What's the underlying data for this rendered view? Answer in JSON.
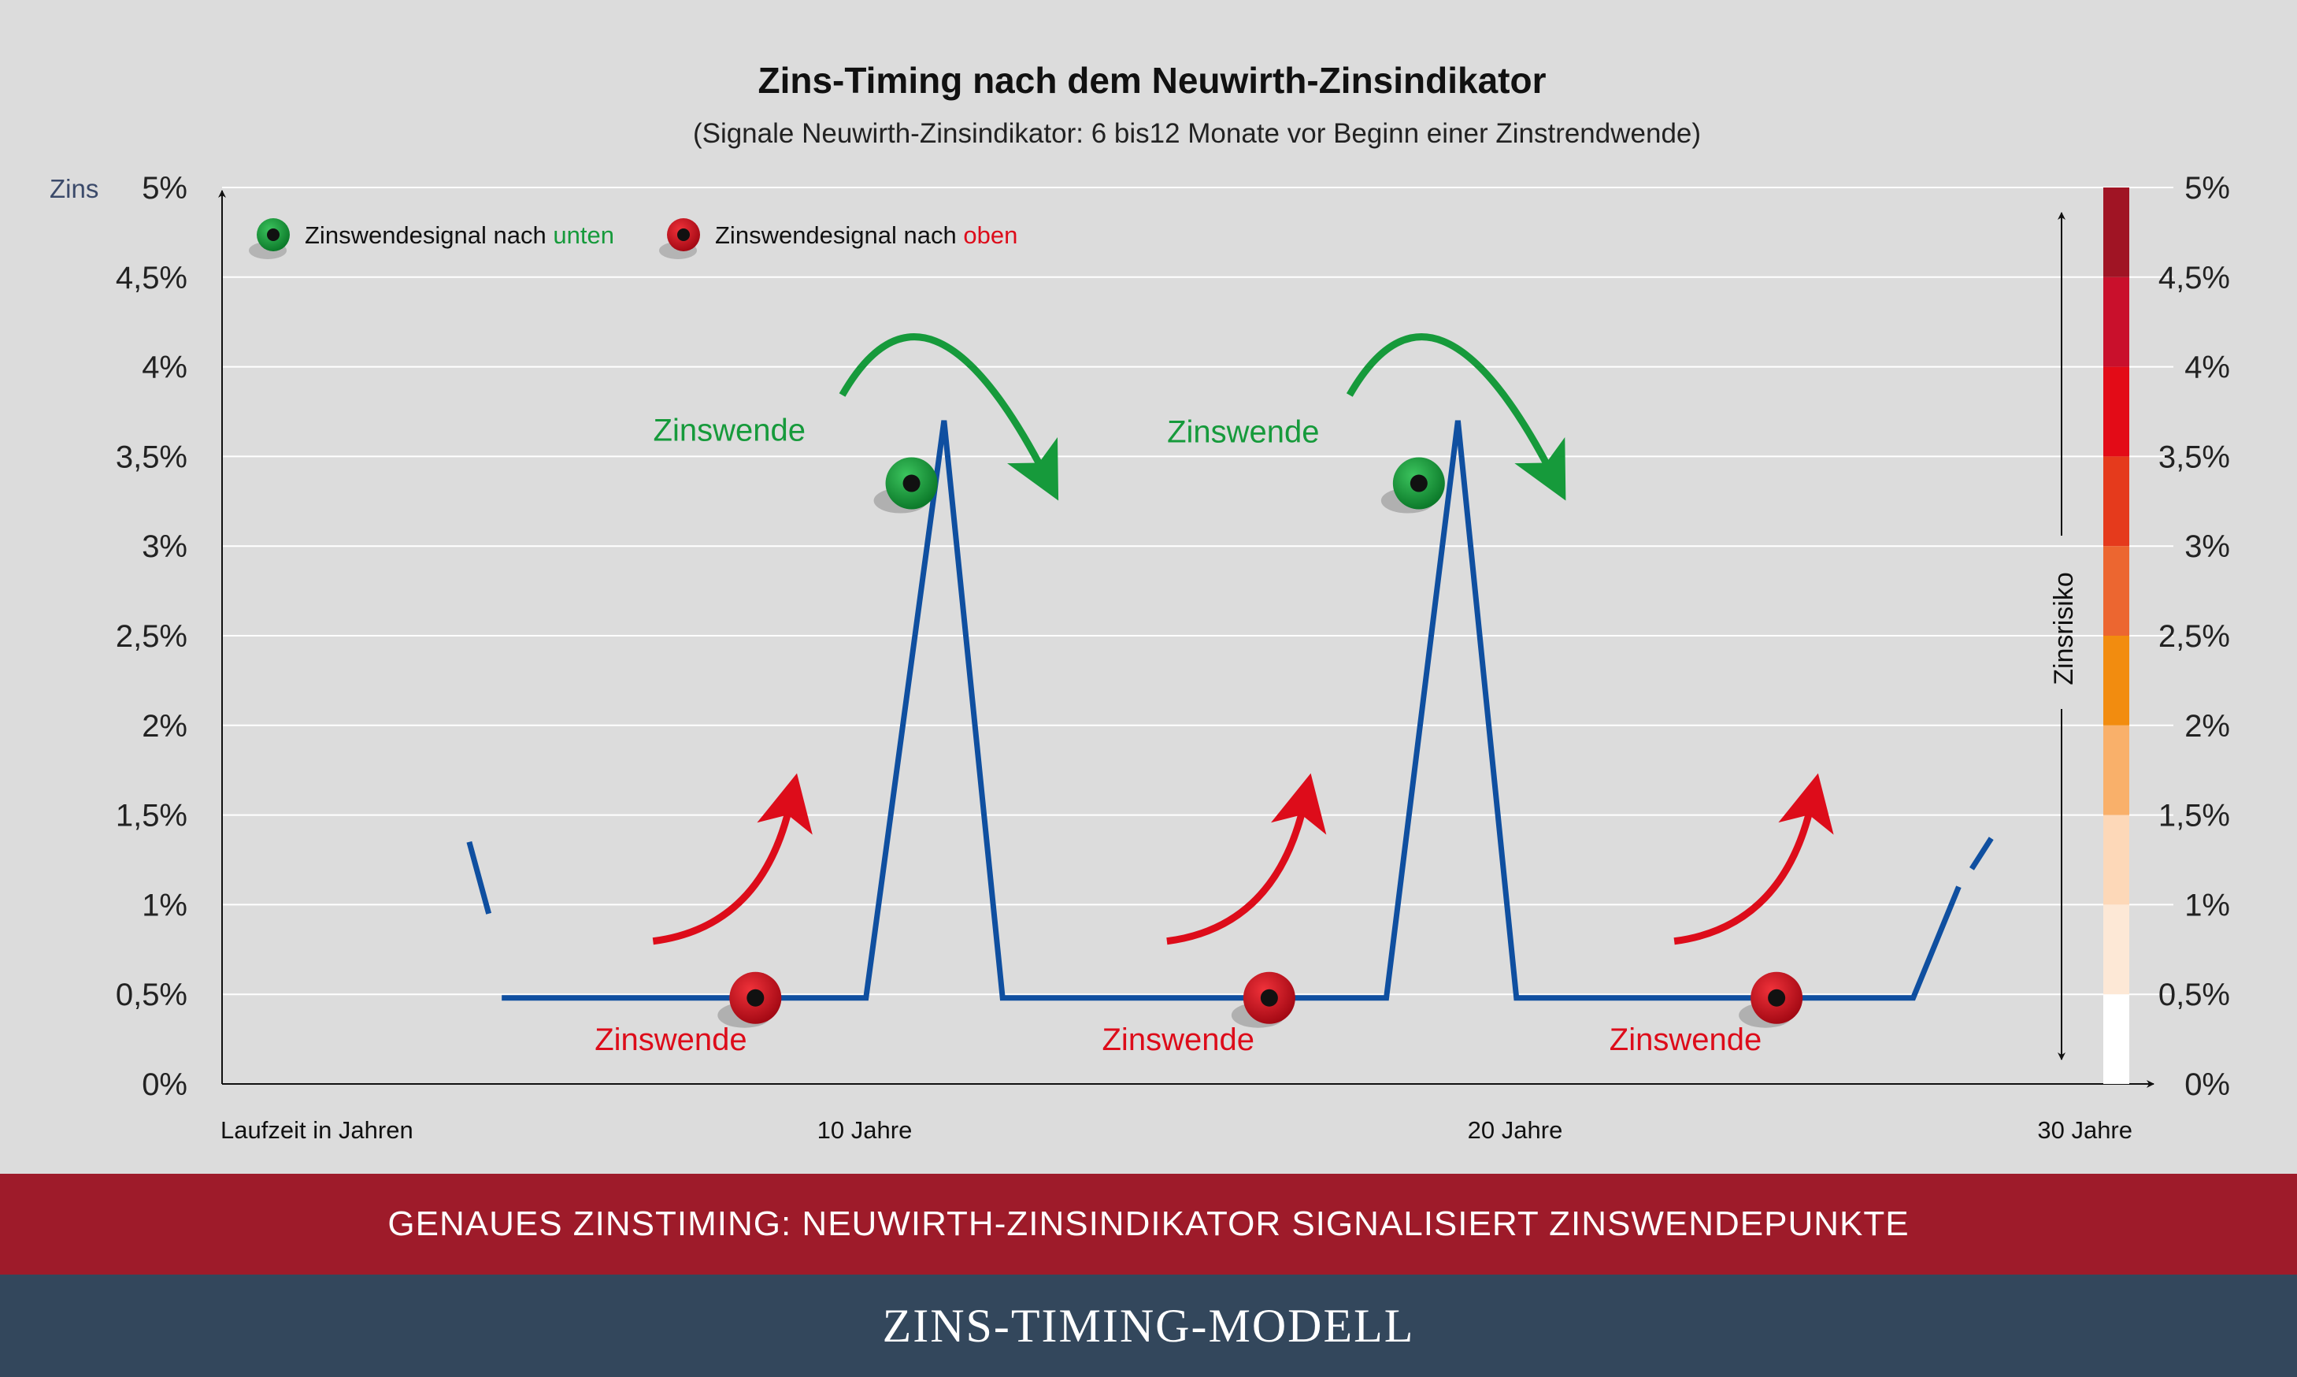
{
  "chart_data": {
    "type": "line",
    "title": "Zins-Timing nach dem Neuwirth-Zinsindikator",
    "subtitle": "(Signale Neuwirth-Zinsindikator: 6 bis12 Monate vor Beginn einer Zinstrendwende)",
    "ylabel": "Zins",
    "xlabel": "Laufzeit in Jahren",
    "ylim": [
      0,
      5
    ],
    "xlim": [
      0,
      30
    ],
    "yticks": [
      "0%",
      "0,5%",
      "1%",
      "1,5%",
      "2%",
      "2,5%",
      "3%",
      "3,5%",
      "4%",
      "4,5%",
      "5%"
    ],
    "xticks": [
      {
        "x": 10,
        "label": "10 Jahre"
      },
      {
        "x": 20,
        "label": "20 Jahre"
      },
      {
        "x": 30,
        "label": "30 Jahre"
      }
    ],
    "grid": true,
    "legend": {
      "placement": "top-left",
      "items": [
        {
          "prefix": "Zinswendesignal nach ",
          "highlight": "unten",
          "color": "#169a3b"
        },
        {
          "prefix": "Zinswendesignal nach ",
          "highlight": "oben",
          "color": "#dd0c1a"
        }
      ]
    },
    "series": [
      {
        "color": "#0f4fa0",
        "dashed_start": [
          [
            3.8,
            1.35
          ],
          [
            4.1,
            0.95
          ]
        ],
        "points": [
          [
            4.3,
            0.48
          ],
          [
            9.3,
            0.48
          ],
          [
            9.9,
            0.48
          ],
          [
            11.1,
            3.7
          ],
          [
            12.0,
            0.48
          ],
          [
            17.0,
            0.48
          ],
          [
            17.9,
            0.48
          ],
          [
            19.0,
            3.7
          ],
          [
            19.9,
            0.48
          ],
          [
            26.0,
            0.48
          ],
          [
            26.7,
            1.1
          ]
        ],
        "dashed_end": [
          [
            26.9,
            1.2
          ],
          [
            27.2,
            1.37
          ]
        ]
      }
    ],
    "signals": [
      {
        "kind": "unten",
        "x": 10.6,
        "y": 3.35
      },
      {
        "kind": "unten",
        "x": 18.4,
        "y": 3.35
      },
      {
        "kind": "oben",
        "x": 8.2,
        "y": 0.48
      },
      {
        "kind": "oben",
        "x": 16.1,
        "y": 0.48
      },
      {
        "kind": "oben",
        "x": 23.9,
        "y": 0.48
      }
    ],
    "annotations": [
      {
        "text": "Zinswende",
        "color": "#169a3b",
        "x": 7.8,
        "y": 3.65
      },
      {
        "text": "Zinswende",
        "color": "#169a3b",
        "x": 15.7,
        "y": 3.64
      },
      {
        "text": "Zinswende",
        "color": "#dd0c1a",
        "x": 6.9,
        "y": 0.25
      },
      {
        "text": "Zinswende",
        "color": "#dd0c1a",
        "x": 14.7,
        "y": 0.25
      },
      {
        "text": "Zinswende",
        "color": "#dd0c1a",
        "x": 22.5,
        "y": 0.25
      }
    ],
    "risk_axis": {
      "label": "Zinsrisiko",
      "scale_colors": [
        "#ffffff",
        "#fde8d6",
        "#fdd8b8",
        "#f9b06a",
        "#f28c0f",
        "#ec6630",
        "#e53a1c",
        "#e30b17",
        "#c9102c",
        "#a01424"
      ]
    }
  },
  "banner": {
    "text": "GENAUES ZINSTIMING: NEUWIRTH-ZINSINDIKATOR SIGNALISIERT ZINSWENDEPUNKTE"
  },
  "footer": {
    "text": "ZINS-TIMING-MODELL"
  }
}
